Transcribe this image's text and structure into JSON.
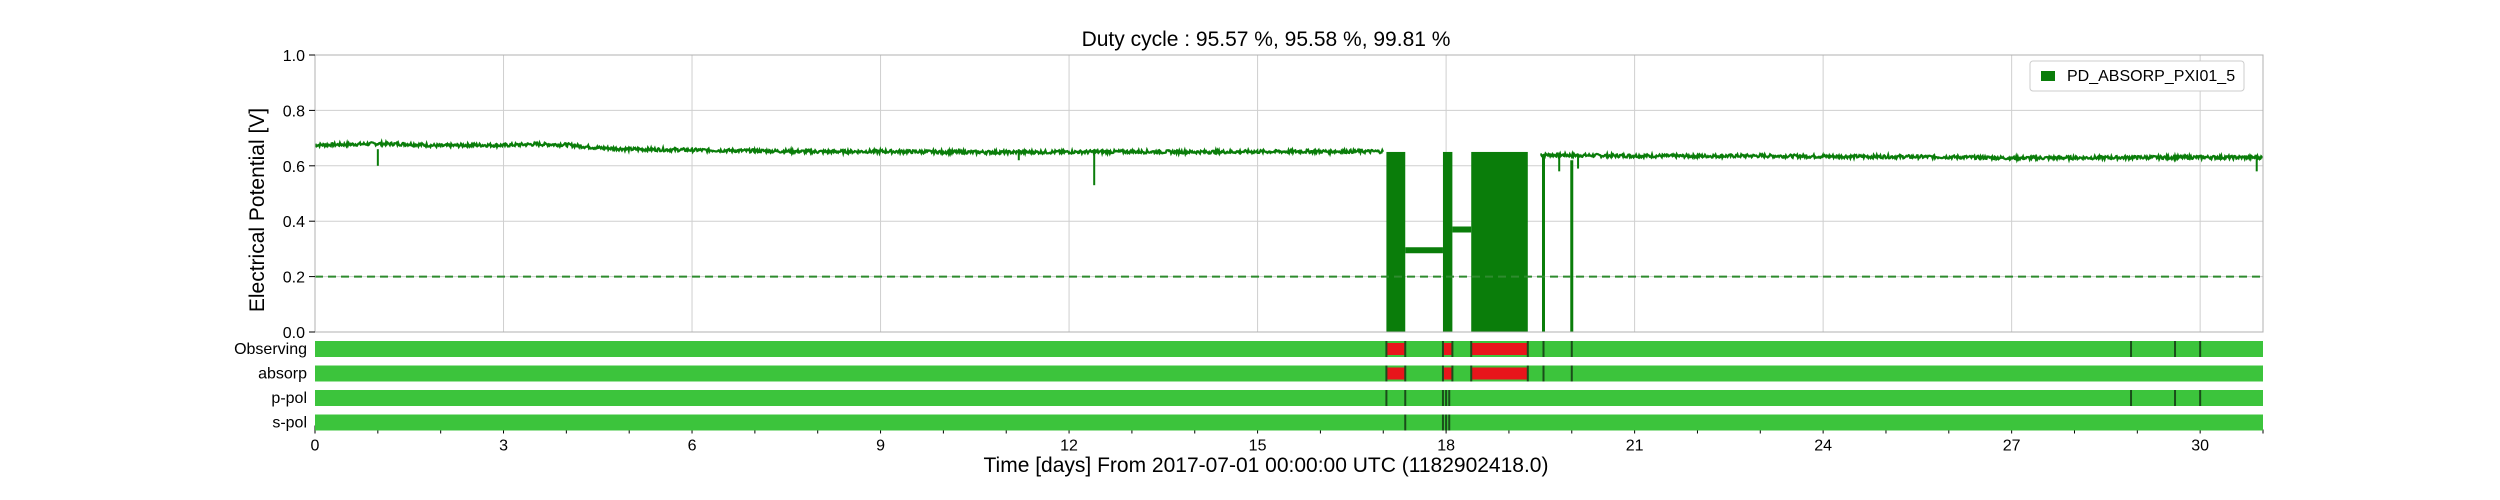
{
  "chart_data": {
    "type": "line",
    "title": "Duty cycle : 95.57 %, 95.58 %, 99.81 %",
    "xlabel": "Time [days] From 2017-07-01 00:00:00 UTC (1182902418.0)",
    "ylabel": "Electrical Potential [V]",
    "xlim": [
      0,
      31
    ],
    "ylim": [
      0,
      1.0
    ],
    "x_ticks": [
      0,
      3,
      6,
      9,
      12,
      15,
      18,
      21,
      24,
      27,
      30
    ],
    "y_ticks": [
      0.0,
      0.2,
      0.4,
      0.6,
      0.8,
      1.0
    ],
    "grid": true,
    "legend_position": "top-right",
    "threshold": 0.2,
    "colors": {
      "series": "#0a7d0a",
      "threshold": "#2e8b2e",
      "active": "#3cc43c",
      "inactive": "#e8151b",
      "edge": "#1a4d1a"
    },
    "series": [
      {
        "name": "PD_ABSORP_PXI01_5",
        "x": [
          0,
          0.5,
          1.0,
          1.5,
          2.0,
          2.5,
          3.0,
          3.5,
          4.0,
          4.5,
          5.0,
          6.0,
          7.0,
          8.0,
          9.0,
          10.0,
          11.0,
          12.0,
          13.0,
          14.0,
          15.0,
          16.0,
          17.0
        ],
        "y": [
          0.675,
          0.677,
          0.68,
          0.678,
          0.672,
          0.675,
          0.674,
          0.678,
          0.676,
          0.665,
          0.66,
          0.657,
          0.654,
          0.651,
          0.652,
          0.65,
          0.649,
          0.65,
          0.651,
          0.65,
          0.651,
          0.652,
          0.652
        ]
      }
    ],
    "series_tail": {
      "x": [
        19.5,
        20,
        21,
        22,
        23,
        24,
        25,
        26,
        27,
        28,
        29,
        30,
        31
      ],
      "y": [
        0.64,
        0.638,
        0.636,
        0.635,
        0.636,
        0.634,
        0.633,
        0.632,
        0.628,
        0.629,
        0.63,
        0.631,
        0.63
      ]
    },
    "dips": [
      {
        "x": 1.0,
        "y": 0.6
      },
      {
        "x": 11.2,
        "y": 0.62
      },
      {
        "x": 12.4,
        "y": 0.53
      },
      {
        "x": 19.8,
        "y": 0.58
      },
      {
        "x": 20.1,
        "y": 0.59
      },
      {
        "x": 30.9,
        "y": 0.58
      }
    ],
    "noisy_blocks": [
      {
        "x0": 17.05,
        "x1": 17.35,
        "ylo": 0.0,
        "yhi": 0.65
      },
      {
        "x0": 17.95,
        "x1": 18.1,
        "ylo": 0.0,
        "yhi": 0.65
      },
      {
        "x0": 18.4,
        "x1": 19.3,
        "ylo": 0.0,
        "yhi": 0.65
      }
    ],
    "plateaus": [
      {
        "x0": 17.35,
        "x1": 17.95,
        "y": 0.295
      },
      {
        "x0": 18.1,
        "x1": 18.4,
        "y": 0.37
      }
    ],
    "drop_lines": [
      {
        "x": 19.55,
        "ylo": 0.0,
        "yhi": 0.64
      },
      {
        "x": 20.0,
        "ylo": 0.0,
        "yhi": 0.62
      }
    ],
    "segments": [
      {
        "label": "Observing",
        "off_intervals": [
          [
            17.05,
            17.35
          ],
          [
            17.95,
            18.1
          ],
          [
            18.4,
            19.3
          ]
        ],
        "edge_marks": [
          17.05,
          17.35,
          17.95,
          18.1,
          18.4,
          19.3,
          19.55,
          20.0,
          28.9,
          29.6,
          30.0
        ]
      },
      {
        "label": "absorp",
        "off_intervals": [
          [
            17.05,
            17.35
          ],
          [
            17.95,
            18.1
          ],
          [
            18.4,
            19.3
          ]
        ],
        "edge_marks": [
          17.05,
          17.35,
          17.95,
          18.1,
          18.4,
          19.3,
          19.55,
          20.0
        ]
      },
      {
        "label": "p-pol",
        "off_intervals": [],
        "edge_marks": [
          17.05,
          17.35,
          17.95,
          18.0,
          18.05,
          28.9,
          29.6,
          30.0
        ]
      },
      {
        "label": "s-pol",
        "off_intervals": [],
        "edge_marks": [
          17.35,
          17.95,
          18.0,
          18.05
        ]
      }
    ]
  }
}
